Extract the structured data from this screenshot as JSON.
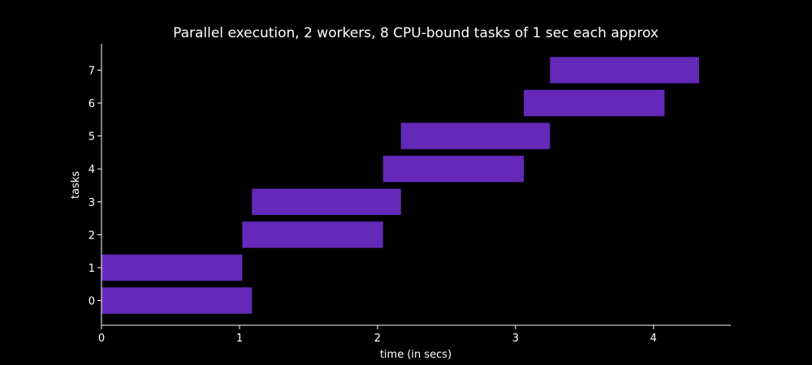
{
  "chart_data": {
    "type": "bar",
    "orientation": "horizontal",
    "title": "Parallel execution, 2 workers, 8 CPU-bound tasks of 1 sec each approx",
    "xlabel": "time (in secs)",
    "ylabel": "tasks",
    "xlim": [
      0,
      4.56
    ],
    "ylim": [
      -0.75,
      7.8
    ],
    "x_ticks": [
      "0",
      "1",
      "2",
      "3",
      "4"
    ],
    "y_ticks": [
      "0",
      "1",
      "2",
      "3",
      "4",
      "5",
      "6",
      "7"
    ],
    "bar_color": "#6429b9",
    "grid": false,
    "tasks": [
      {
        "task": 0,
        "start": 0.0,
        "end": 1.09
      },
      {
        "task": 1,
        "start": 0.0,
        "end": 1.02
      },
      {
        "task": 2,
        "start": 1.02,
        "end": 2.04
      },
      {
        "task": 3,
        "start": 1.09,
        "end": 2.17
      },
      {
        "task": 4,
        "start": 2.04,
        "end": 3.06
      },
      {
        "task": 5,
        "start": 2.17,
        "end": 3.25
      },
      {
        "task": 6,
        "start": 3.06,
        "end": 4.08
      },
      {
        "task": 7,
        "start": 3.25,
        "end": 4.33
      }
    ]
  }
}
